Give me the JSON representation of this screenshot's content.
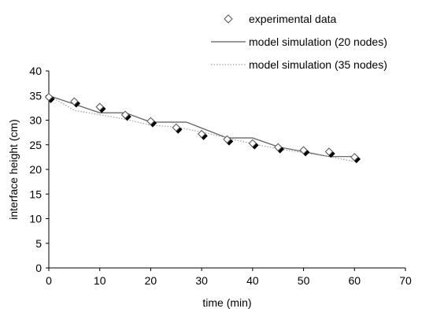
{
  "chart_data": {
    "type": "scatter",
    "title": "",
    "xlabel": "time (min)",
    "ylabel": "interface height (cm)",
    "xlim": [
      0,
      70
    ],
    "ylim": [
      0,
      40
    ],
    "xticks": [
      0,
      10,
      20,
      30,
      40,
      50,
      60,
      70
    ],
    "yticks": [
      0,
      5,
      10,
      15,
      20,
      25,
      30,
      35,
      40
    ],
    "grid": false,
    "legend_position": "top-right",
    "series": [
      {
        "name": "experimental data",
        "kind": "markers",
        "marker": "diamond",
        "x": [
          0,
          5,
          10,
          15,
          20,
          25,
          30,
          35,
          40,
          45,
          50,
          55,
          60
        ],
        "y": [
          34.7,
          33.8,
          32.7,
          31.1,
          29.8,
          28.5,
          27.2,
          26.1,
          25.3,
          24.5,
          23.9,
          23.6,
          22.5
        ]
      },
      {
        "name": "model simulation (20 nodes)",
        "kind": "line",
        "color": "#5a5a5a",
        "dash": "solid",
        "x": [
          0,
          10,
          15,
          20,
          27,
          35,
          40,
          45,
          55,
          60
        ],
        "y": [
          35.0,
          31.5,
          31.5,
          29.6,
          29.6,
          26.4,
          26.4,
          24.6,
          22.6,
          22.6
        ]
      },
      {
        "name": "model simulation (35 nodes)",
        "kind": "line",
        "color": "#a0a0a0",
        "dash": "dotted",
        "x": [
          0,
          5,
          15,
          20,
          25,
          30,
          40,
          45,
          55,
          60
        ],
        "y": [
          35.0,
          32.0,
          30.2,
          29.0,
          28.6,
          27.6,
          25.2,
          24.2,
          22.6,
          21.6
        ]
      }
    ]
  }
}
